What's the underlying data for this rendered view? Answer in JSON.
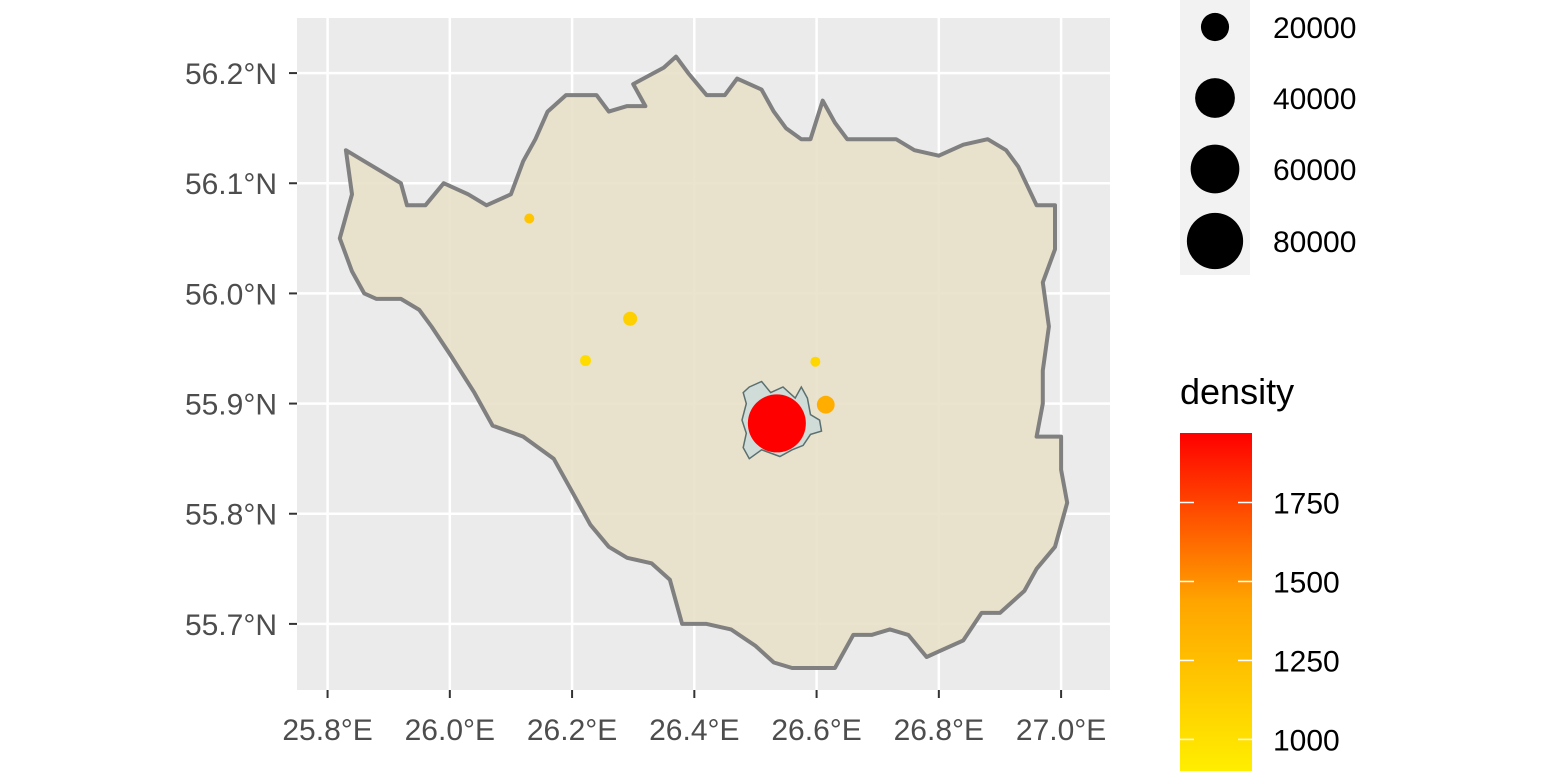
{
  "map": {
    "background_color": "#ebebeb",
    "grid_color": "#ffffff",
    "x_axis": {
      "range": [
        25.75,
        27.08
      ],
      "ticks": [
        {
          "value": 25.8,
          "label": "25.8°E"
        },
        {
          "value": 26.0,
          "label": "26.0°E"
        },
        {
          "value": 26.2,
          "label": "26.2°E"
        },
        {
          "value": 26.4,
          "label": "26.4°E"
        },
        {
          "value": 26.6,
          "label": "26.6°E"
        },
        {
          "value": 26.8,
          "label": "26.8°E"
        },
        {
          "value": 27.0,
          "label": "27.0°E"
        }
      ]
    },
    "y_axis": {
      "range": [
        55.64,
        56.25
      ],
      "ticks": [
        {
          "value": 55.7,
          "label": "55.7°N"
        },
        {
          "value": 55.8,
          "label": "55.8°N"
        },
        {
          "value": 55.9,
          "label": "55.9°N"
        },
        {
          "value": 56.0,
          "label": "56.0°N"
        },
        {
          "value": 56.1,
          "label": "56.1°N"
        },
        {
          "value": 56.2,
          "label": "56.2°N"
        }
      ]
    },
    "region": {
      "fill": "#e8e0c8",
      "stroke": "#808080",
      "boundary": [
        [
          25.83,
          56.13
        ],
        [
          25.86,
          56.12
        ],
        [
          25.89,
          56.11
        ],
        [
          25.92,
          56.1
        ],
        [
          25.93,
          56.08
        ],
        [
          25.96,
          56.08
        ],
        [
          25.99,
          56.1
        ],
        [
          26.03,
          56.09
        ],
        [
          26.06,
          56.08
        ],
        [
          26.1,
          56.09
        ],
        [
          26.12,
          56.12
        ],
        [
          26.14,
          56.14
        ],
        [
          26.16,
          56.165
        ],
        [
          26.19,
          56.18
        ],
        [
          26.24,
          56.18
        ],
        [
          26.26,
          56.165
        ],
        [
          26.29,
          56.17
        ],
        [
          26.32,
          56.17
        ],
        [
          26.3,
          56.19
        ],
        [
          26.35,
          56.205
        ],
        [
          26.37,
          56.215
        ],
        [
          26.39,
          56.2
        ],
        [
          26.42,
          56.18
        ],
        [
          26.45,
          56.18
        ],
        [
          26.47,
          56.195
        ],
        [
          26.51,
          56.185
        ],
        [
          26.53,
          56.165
        ],
        [
          26.55,
          56.15
        ],
        [
          26.575,
          56.14
        ],
        [
          26.59,
          56.14
        ],
        [
          26.61,
          56.175
        ],
        [
          26.63,
          56.155
        ],
        [
          26.65,
          56.14
        ],
        [
          26.7,
          56.14
        ],
        [
          26.73,
          56.14
        ],
        [
          26.76,
          56.13
        ],
        [
          26.8,
          56.125
        ],
        [
          26.84,
          56.135
        ],
        [
          26.88,
          56.14
        ],
        [
          26.91,
          56.13
        ],
        [
          26.93,
          56.115
        ],
        [
          26.96,
          56.08
        ],
        [
          26.99,
          56.08
        ],
        [
          26.99,
          56.04
        ],
        [
          26.97,
          56.01
        ],
        [
          26.98,
          55.97
        ],
        [
          26.97,
          55.93
        ],
        [
          26.97,
          55.9
        ],
        [
          26.96,
          55.87
        ],
        [
          27.0,
          55.87
        ],
        [
          27.0,
          55.84
        ],
        [
          27.01,
          55.81
        ],
        [
          27.0,
          55.79
        ],
        [
          26.99,
          55.77
        ],
        [
          26.96,
          55.75
        ],
        [
          26.94,
          55.73
        ],
        [
          26.9,
          55.71
        ],
        [
          26.87,
          55.71
        ],
        [
          26.84,
          55.685
        ],
        [
          26.8,
          55.675
        ],
        [
          26.78,
          55.67
        ],
        [
          26.75,
          55.69
        ],
        [
          26.72,
          55.695
        ],
        [
          26.69,
          55.69
        ],
        [
          26.66,
          55.69
        ],
        [
          26.63,
          55.66
        ],
        [
          26.6,
          55.66
        ],
        [
          26.56,
          55.66
        ],
        [
          26.53,
          55.665
        ],
        [
          26.5,
          55.68
        ],
        [
          26.46,
          55.695
        ],
        [
          26.42,
          55.7
        ],
        [
          26.38,
          55.7
        ],
        [
          26.36,
          55.74
        ],
        [
          26.33,
          55.755
        ],
        [
          26.29,
          55.76
        ],
        [
          26.26,
          55.77
        ],
        [
          26.23,
          55.79
        ],
        [
          26.2,
          55.82
        ],
        [
          26.17,
          55.85
        ],
        [
          26.12,
          55.87
        ],
        [
          26.07,
          55.88
        ],
        [
          26.04,
          55.91
        ],
        [
          26.0,
          55.945
        ],
        [
          25.97,
          55.97
        ],
        [
          25.95,
          55.985
        ],
        [
          25.92,
          55.995
        ],
        [
          25.88,
          55.995
        ],
        [
          25.86,
          56.0
        ],
        [
          25.84,
          56.02
        ],
        [
          25.82,
          56.05
        ],
        [
          25.83,
          56.07
        ],
        [
          25.84,
          56.09
        ],
        [
          25.83,
          56.13
        ]
      ]
    },
    "urban_area": {
      "fill": "#cfdcd8",
      "stroke": "#5a6f6f",
      "boundary": [
        [
          26.49,
          55.915
        ],
        [
          26.51,
          55.92
        ],
        [
          26.525,
          55.91
        ],
        [
          26.545,
          55.915
        ],
        [
          26.565,
          55.905
        ],
        [
          26.575,
          55.915
        ],
        [
          26.585,
          55.905
        ],
        [
          26.59,
          55.89
        ],
        [
          26.605,
          55.885
        ],
        [
          26.608,
          55.875
        ],
        [
          26.59,
          55.872
        ],
        [
          26.578,
          55.862
        ],
        [
          26.56,
          55.858
        ],
        [
          26.54,
          55.852
        ],
        [
          26.51,
          55.858
        ],
        [
          26.49,
          55.85
        ],
        [
          26.48,
          55.86
        ],
        [
          26.485,
          55.873
        ],
        [
          26.478,
          55.885
        ],
        [
          26.485,
          55.9
        ],
        [
          26.48,
          55.91
        ],
        [
          26.49,
          55.915
        ]
      ]
    },
    "points": [
      {
        "lon": 26.13,
        "lat": 56.068,
        "population": 1000,
        "density": 1200
      },
      {
        "lon": 26.295,
        "lat": 55.977,
        "population": 5000,
        "density": 1120
      },
      {
        "lon": 26.222,
        "lat": 55.939,
        "population": 3000,
        "density": 1030
      },
      {
        "lon": 26.598,
        "lat": 55.938,
        "population": 1500,
        "density": 1070
      },
      {
        "lon": 26.615,
        "lat": 55.899,
        "population": 8000,
        "density": 1370
      },
      {
        "lon": 26.535,
        "lat": 55.882,
        "population": 85000,
        "density": 1970
      }
    ]
  },
  "size_legend": {
    "entries": [
      {
        "value": 20000,
        "label": "20000"
      },
      {
        "value": 40000,
        "label": "40000"
      },
      {
        "value": 60000,
        "label": "60000"
      },
      {
        "value": 80000,
        "label": "80000"
      }
    ]
  },
  "color_legend": {
    "title": "density",
    "range": [
      900,
      1970
    ],
    "low_color": "#ffee00",
    "mid_color": "#ffa500",
    "high_color": "#ff0000",
    "ticks": [
      {
        "value": 1000,
        "label": "1000"
      },
      {
        "value": 1250,
        "label": "1250"
      },
      {
        "value": 1500,
        "label": "1500"
      },
      {
        "value": 1750,
        "label": "1750"
      }
    ]
  }
}
